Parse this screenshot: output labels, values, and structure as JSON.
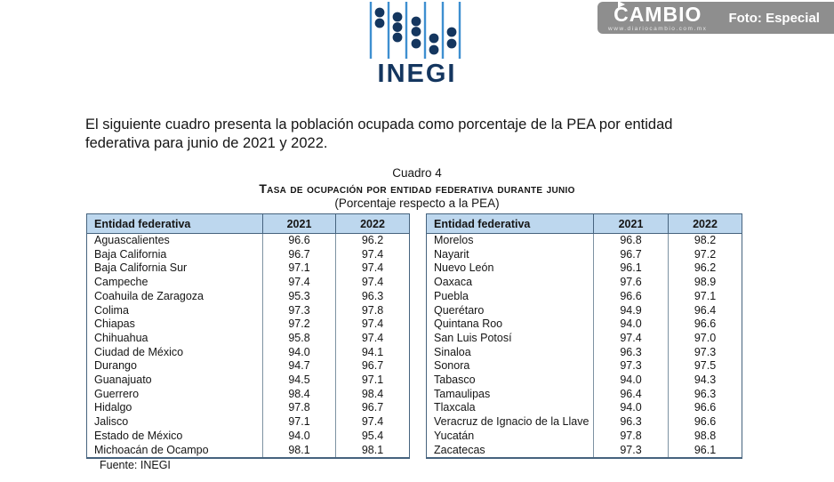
{
  "branding": {
    "inegi": {
      "logo_text": "INEGI"
    },
    "cambio": {
      "logo_text": "CAMBIO",
      "url_text": "www.diariocambio.com.mx",
      "photo_credit": "Foto: Especial"
    }
  },
  "intro": {
    "line1": "El siguiente cuadro presenta la población ocupada como porcentaje de la PEA por entidad",
    "line2": "federativa para junio de 2021 y 2022."
  },
  "heading": {
    "cuadro": "Cuadro 4",
    "title": "Tasa de ocupación por entidad federativa durante junio",
    "subtitle": "(Porcentaje respecto a la PEA)"
  },
  "table": {
    "columns": [
      "Entidad federativa",
      "2021",
      "2022"
    ],
    "left_rows": [
      [
        "Aguascalientes",
        "96.6",
        "96.2"
      ],
      [
        "Baja California",
        "96.7",
        "97.4"
      ],
      [
        "Baja California Sur",
        "97.1",
        "97.4"
      ],
      [
        "Campeche",
        "97.4",
        "97.4"
      ],
      [
        "Coahuila de Zaragoza",
        "95.3",
        "96.3"
      ],
      [
        "Colima",
        "97.3",
        "97.8"
      ],
      [
        "Chiapas",
        "97.2",
        "97.4"
      ],
      [
        "Chihuahua",
        "95.8",
        "97.4"
      ],
      [
        "Ciudad de México",
        "94.0",
        "94.1"
      ],
      [
        "Durango",
        "94.7",
        "96.7"
      ],
      [
        "Guanajuato",
        "94.5",
        "97.1"
      ],
      [
        "Guerrero",
        "98.4",
        "98.4"
      ],
      [
        "Hidalgo",
        "97.8",
        "96.7"
      ],
      [
        "Jalisco",
        "97.1",
        "97.4"
      ],
      [
        "Estado de México",
        "94.0",
        "95.4"
      ],
      [
        "Michoacán de Ocampo",
        "98.1",
        "98.1"
      ]
    ],
    "right_rows": [
      [
        "Morelos",
        "96.8",
        "98.2"
      ],
      [
        "Nayarit",
        "96.7",
        "97.2"
      ],
      [
        "Nuevo León",
        "96.1",
        "96.2"
      ],
      [
        "Oaxaca",
        "97.6",
        "98.9"
      ],
      [
        "Puebla",
        "96.6",
        "97.1"
      ],
      [
        "Querétaro",
        "94.9",
        "96.4"
      ],
      [
        "Quintana Roo",
        "94.0",
        "96.6"
      ],
      [
        "San Luis Potosí",
        "97.4",
        "97.0"
      ],
      [
        "Sinaloa",
        "96.3",
        "97.3"
      ],
      [
        "Sonora",
        "97.3",
        "97.5"
      ],
      [
        "Tabasco",
        "94.0",
        "94.3"
      ],
      [
        "Tamaulipas",
        "96.4",
        "96.3"
      ],
      [
        "Tlaxcala",
        "94.0",
        "96.6"
      ],
      [
        "Veracruz de Ignacio de la Llave",
        "96.3",
        "96.6"
      ],
      [
        "Yucatán",
        "97.8",
        "98.8"
      ],
      [
        "Zacatecas",
        "97.3",
        "96.1"
      ]
    ]
  },
  "source": "Fuente: INEGI",
  "colors": {
    "header_fill": "#bdd7ee",
    "border_dark": "#46637e",
    "banner_gray": "#8e8e8e",
    "inegi_navy": "#14365f",
    "inegi_light_blue": "#3e8fd0"
  }
}
